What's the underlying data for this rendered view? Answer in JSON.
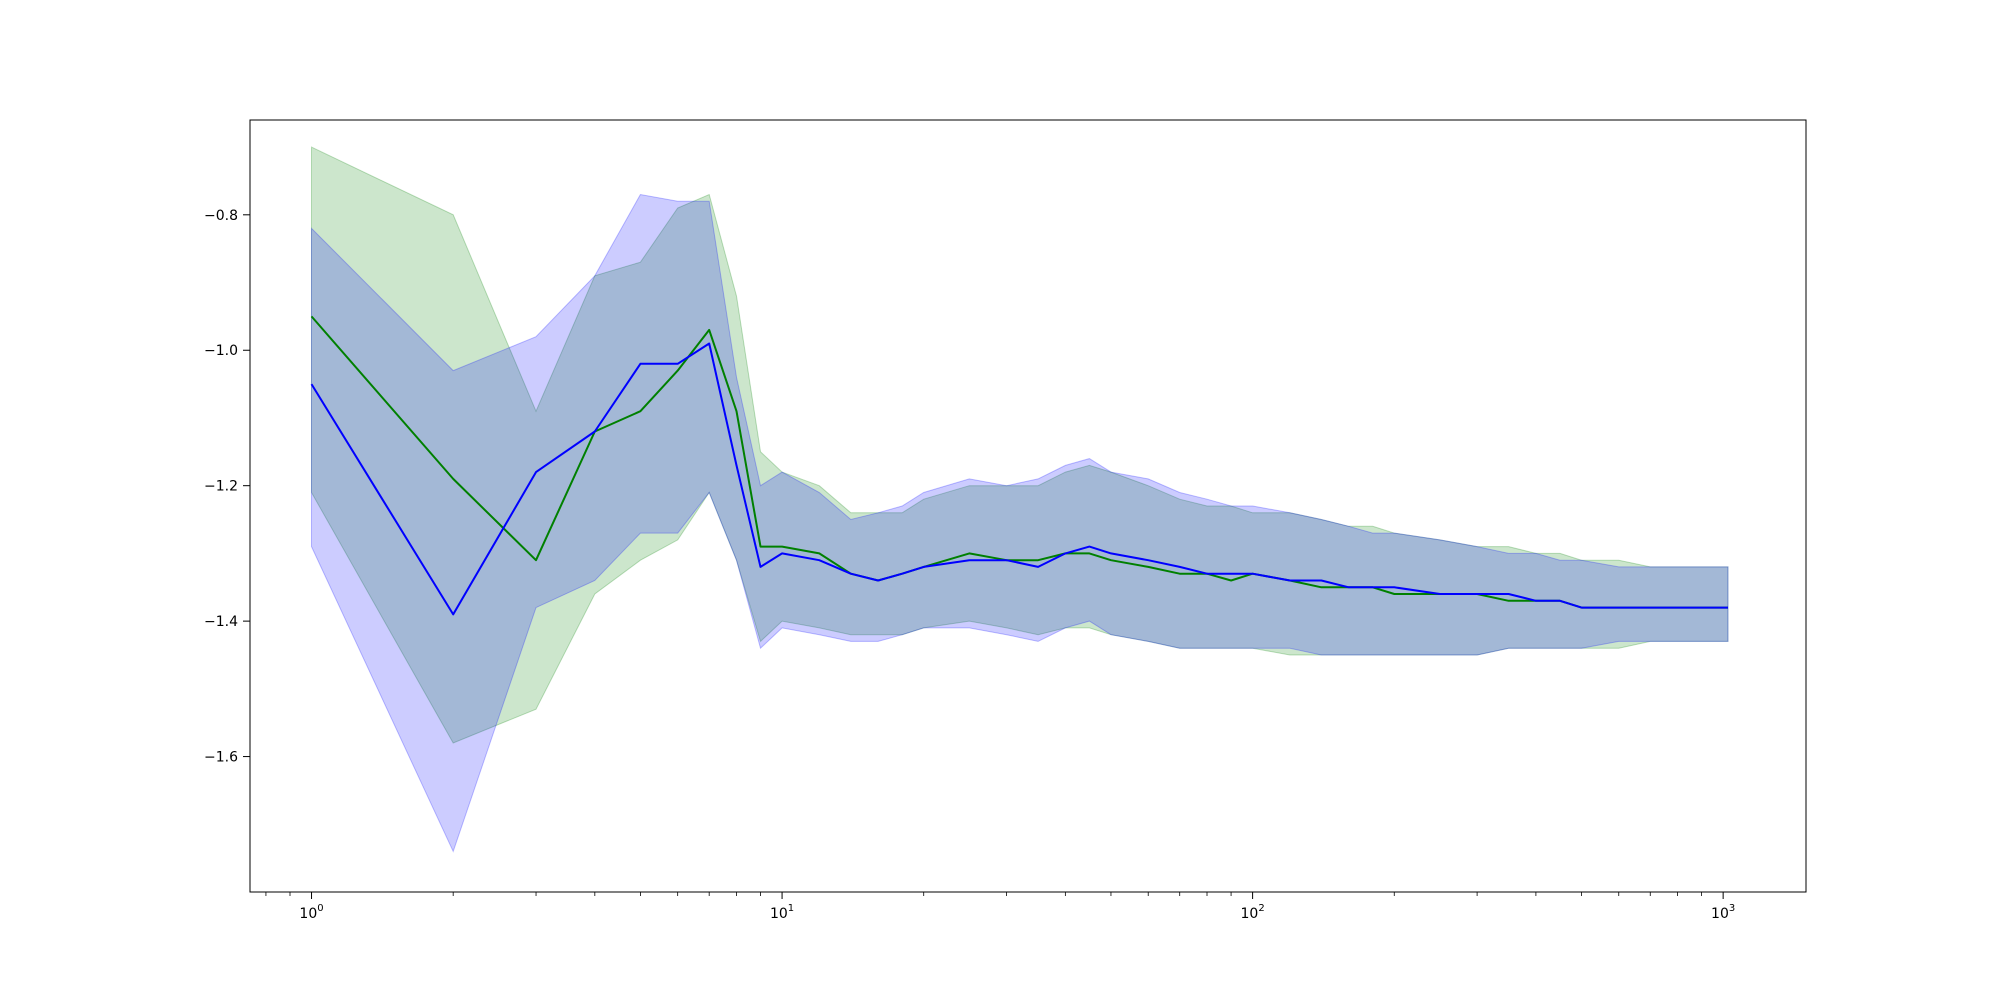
{
  "chart_data": {
    "type": "line",
    "x_scale": "log",
    "xlim": [
      0.74,
      1500
    ],
    "ylim": [
      -1.8,
      -0.66
    ],
    "grid": false,
    "legend": "none",
    "x_ticks": [
      {
        "value": 1,
        "base": "10",
        "exp": "0"
      },
      {
        "value": 10,
        "base": "10",
        "exp": "1"
      },
      {
        "value": 100,
        "base": "10",
        "exp": "2"
      },
      {
        "value": 1000,
        "base": "10",
        "exp": "3"
      }
    ],
    "y_ticks": [
      {
        "value": -0.8,
        "label": "−0.8"
      },
      {
        "value": -1.0,
        "label": "−1.0"
      },
      {
        "value": -1.2,
        "label": "−1.2"
      },
      {
        "value": -1.4,
        "label": "−1.4"
      },
      {
        "value": -1.6,
        "label": "−1.6"
      }
    ],
    "series": [
      {
        "color": "#008000",
        "band_color": "#008000",
        "x": [
          1,
          2,
          3,
          4,
          5,
          6,
          7,
          8,
          9,
          10,
          12,
          14,
          16,
          18,
          20,
          25,
          30,
          35,
          40,
          45,
          50,
          60,
          70,
          80,
          90,
          100,
          120,
          140,
          160,
          180,
          200,
          250,
          300,
          350,
          400,
          450,
          500,
          600,
          700,
          800,
          900,
          1024
        ],
        "mean": [
          -0.95,
          -1.19,
          -1.31,
          -1.12,
          -1.09,
          -1.03,
          -0.97,
          -1.09,
          -1.29,
          -1.29,
          -1.3,
          -1.33,
          -1.34,
          -1.33,
          -1.32,
          -1.3,
          -1.31,
          -1.31,
          -1.3,
          -1.3,
          -1.31,
          -1.32,
          -1.33,
          -1.33,
          -1.34,
          -1.33,
          -1.34,
          -1.35,
          -1.35,
          -1.35,
          -1.36,
          -1.36,
          -1.36,
          -1.37,
          -1.37,
          -1.37,
          -1.38,
          -1.38,
          -1.38,
          -1.38,
          -1.38,
          -1.38
        ],
        "upper": [
          -0.7,
          -0.8,
          -1.09,
          -0.89,
          -0.87,
          -0.79,
          -0.77,
          -0.92,
          -1.15,
          -1.18,
          -1.2,
          -1.24,
          -1.24,
          -1.24,
          -1.22,
          -1.2,
          -1.2,
          -1.2,
          -1.18,
          -1.17,
          -1.18,
          -1.2,
          -1.22,
          -1.23,
          -1.23,
          -1.24,
          -1.24,
          -1.25,
          -1.26,
          -1.26,
          -1.27,
          -1.28,
          -1.29,
          -1.29,
          -1.3,
          -1.3,
          -1.31,
          -1.31,
          -1.32,
          -1.32,
          -1.32,
          -1.32
        ],
        "lower": [
          -1.21,
          -1.58,
          -1.53,
          -1.36,
          -1.31,
          -1.28,
          -1.21,
          -1.31,
          -1.43,
          -1.4,
          -1.41,
          -1.42,
          -1.42,
          -1.42,
          -1.41,
          -1.4,
          -1.41,
          -1.42,
          -1.41,
          -1.41,
          -1.42,
          -1.43,
          -1.44,
          -1.44,
          -1.44,
          -1.44,
          -1.45,
          -1.45,
          -1.45,
          -1.45,
          -1.45,
          -1.45,
          -1.45,
          -1.44,
          -1.44,
          -1.44,
          -1.44,
          -1.44,
          -1.43,
          -1.43,
          -1.43,
          -1.43
        ]
      },
      {
        "color": "#0000ff",
        "band_color": "#0000ff",
        "x": [
          1,
          2,
          3,
          4,
          5,
          6,
          7,
          8,
          9,
          10,
          12,
          14,
          16,
          18,
          20,
          25,
          30,
          35,
          40,
          45,
          50,
          60,
          70,
          80,
          90,
          100,
          120,
          140,
          160,
          180,
          200,
          250,
          300,
          350,
          400,
          450,
          500,
          600,
          700,
          800,
          900,
          1024
        ],
        "mean": [
          -1.05,
          -1.39,
          -1.18,
          -1.12,
          -1.02,
          -1.02,
          -0.99,
          -1.17,
          -1.32,
          -1.3,
          -1.31,
          -1.33,
          -1.34,
          -1.33,
          -1.32,
          -1.31,
          -1.31,
          -1.32,
          -1.3,
          -1.29,
          -1.3,
          -1.31,
          -1.32,
          -1.33,
          -1.33,
          -1.33,
          -1.34,
          -1.34,
          -1.35,
          -1.35,
          -1.35,
          -1.36,
          -1.36,
          -1.36,
          -1.37,
          -1.37,
          -1.38,
          -1.38,
          -1.38,
          -1.38,
          -1.38,
          -1.38
        ],
        "upper": [
          -0.82,
          -1.03,
          -0.98,
          -0.89,
          -0.77,
          -0.78,
          -0.78,
          -1.04,
          -1.2,
          -1.18,
          -1.21,
          -1.25,
          -1.24,
          -1.23,
          -1.21,
          -1.19,
          -1.2,
          -1.19,
          -1.17,
          -1.16,
          -1.18,
          -1.19,
          -1.21,
          -1.22,
          -1.23,
          -1.23,
          -1.24,
          -1.25,
          -1.26,
          -1.27,
          -1.27,
          -1.28,
          -1.29,
          -1.3,
          -1.3,
          -1.31,
          -1.31,
          -1.32,
          -1.32,
          -1.32,
          -1.32,
          -1.32
        ],
        "lower": [
          -1.29,
          -1.74,
          -1.38,
          -1.34,
          -1.27,
          -1.27,
          -1.21,
          -1.31,
          -1.44,
          -1.41,
          -1.42,
          -1.43,
          -1.43,
          -1.42,
          -1.41,
          -1.41,
          -1.42,
          -1.43,
          -1.41,
          -1.4,
          -1.42,
          -1.43,
          -1.44,
          -1.44,
          -1.44,
          -1.44,
          -1.44,
          -1.45,
          -1.45,
          -1.45,
          -1.45,
          -1.45,
          -1.45,
          -1.44,
          -1.44,
          -1.44,
          -1.44,
          -1.43,
          -1.43,
          -1.43,
          -1.43,
          -1.43
        ]
      }
    ]
  }
}
